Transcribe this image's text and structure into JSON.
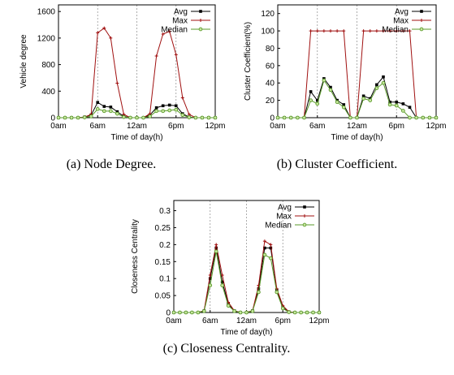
{
  "chart_data": [
    {
      "type": "line",
      "caption": "(a) Node Degree.",
      "xlabel": "Time of day(h)",
      "ylabel": "Vehicle degree",
      "x_ticks": [
        "0am",
        "6am",
        "12am",
        "6pm",
        "12pm"
      ],
      "y_ticks": [
        "0",
        "400",
        "800",
        "1200",
        "1600"
      ],
      "ylim": [
        0,
        1700
      ],
      "xlim": [
        0,
        24
      ],
      "grid": "vertical dashed",
      "legend": "top-right",
      "x": [
        0,
        1,
        2,
        3,
        4,
        5,
        6,
        7,
        8,
        9,
        10,
        11,
        12,
        13,
        14,
        15,
        16,
        17,
        18,
        19,
        20,
        21,
        22,
        23,
        24
      ],
      "series": [
        {
          "name": "Avg",
          "color": "#000000",
          "marker": "square",
          "values": [
            0,
            0,
            0,
            0,
            10,
            40,
            230,
            170,
            160,
            90,
            20,
            0,
            0,
            0,
            40,
            150,
            180,
            190,
            180,
            60,
            10,
            0,
            0,
            0,
            0
          ]
        },
        {
          "name": "Max",
          "color": "#a01010",
          "marker": "plus",
          "values": [
            0,
            0,
            0,
            0,
            10,
            50,
            1280,
            1350,
            1200,
            520,
            50,
            0,
            0,
            0,
            60,
            930,
            1260,
            1300,
            950,
            300,
            50,
            0,
            0,
            0,
            0
          ]
        },
        {
          "name": "Median",
          "color": "#5a9a2a",
          "marker": "circle",
          "values": [
            0,
            0,
            0,
            0,
            5,
            20,
            130,
            100,
            100,
            60,
            10,
            0,
            0,
            0,
            20,
            100,
            100,
            110,
            120,
            40,
            5,
            0,
            0,
            0,
            0
          ]
        }
      ]
    },
    {
      "type": "line",
      "caption": "(b) Cluster Coefficient.",
      "xlabel": "Time of day(h)",
      "ylabel": "Cluster Coefficient(%)",
      "x_ticks": [
        "0am",
        "6am",
        "12am",
        "6pm",
        "12pm"
      ],
      "y_ticks": [
        "0",
        "20",
        "40",
        "60",
        "80",
        "100",
        "120"
      ],
      "ylim": [
        0,
        130
      ],
      "xlim": [
        0,
        24
      ],
      "grid": "vertical dashed",
      "legend": "top-right",
      "x": [
        0,
        1,
        2,
        3,
        4,
        5,
        6,
        7,
        8,
        9,
        10,
        11,
        12,
        13,
        14,
        15,
        16,
        17,
        18,
        19,
        20,
        21,
        22,
        23,
        24
      ],
      "series": [
        {
          "name": "Avg",
          "color": "#000000",
          "marker": "square",
          "values": [
            0,
            0,
            0,
            0,
            0,
            30,
            20,
            45,
            35,
            20,
            15,
            0,
            0,
            25,
            22,
            38,
            47,
            18,
            18,
            16,
            12,
            0,
            0,
            0,
            0
          ]
        },
        {
          "name": "Max",
          "color": "#a01010",
          "marker": "plus",
          "values": [
            0,
            0,
            0,
            0,
            0,
            100,
            100,
            100,
            100,
            100,
            100,
            0,
            0,
            100,
            100,
            100,
            100,
            100,
            100,
            100,
            100,
            0,
            0,
            0,
            0
          ]
        },
        {
          "name": "Median",
          "color": "#5a9a2a",
          "marker": "circle",
          "values": [
            0,
            0,
            0,
            0,
            0,
            20,
            16,
            43,
            32,
            18,
            12,
            0,
            0,
            22,
            20,
            34,
            40,
            15,
            14,
            8,
            0,
            0,
            0,
            0,
            0
          ]
        }
      ]
    },
    {
      "type": "line",
      "caption": "(c) Closeness Centrality.",
      "xlabel": "Time of day(h)",
      "ylabel": "Closeness Centrality",
      "x_ticks": [
        "0am",
        "6am",
        "12am",
        "6pm",
        "12pm"
      ],
      "y_ticks": [
        "0",
        "0.05",
        "0.1",
        "0.15",
        "0.2",
        "0.25",
        "0.3"
      ],
      "ylim": [
        0,
        0.33
      ],
      "xlim": [
        0,
        24
      ],
      "grid": "vertical dashed",
      "legend": "top-right",
      "x": [
        0,
        1,
        2,
        3,
        4,
        5,
        6,
        7,
        8,
        9,
        10,
        11,
        12,
        13,
        14,
        15,
        16,
        17,
        18,
        19,
        20,
        21,
        22,
        23,
        24
      ],
      "series": [
        {
          "name": "Avg",
          "color": "#000000",
          "marker": "square",
          "values": [
            0,
            0,
            0,
            0,
            0,
            0.005,
            0.1,
            0.19,
            0.09,
            0.025,
            0.005,
            0,
            0,
            0.005,
            0.07,
            0.19,
            0.19,
            0.065,
            0.015,
            0.002,
            0,
            0,
            0,
            0,
            0
          ]
        },
        {
          "name": "Max",
          "color": "#a01010",
          "marker": "plus",
          "values": [
            0,
            0,
            0,
            0,
            0,
            0.005,
            0.11,
            0.2,
            0.11,
            0.03,
            0.005,
            0,
            0,
            0.005,
            0.08,
            0.21,
            0.2,
            0.07,
            0.02,
            0.002,
            0,
            0,
            0,
            0,
            0
          ]
        },
        {
          "name": "Median",
          "color": "#5a9a2a",
          "marker": "circle",
          "values": [
            0,
            0,
            0,
            0,
            0,
            0.004,
            0.08,
            0.18,
            0.08,
            0.02,
            0.004,
            0,
            0,
            0.004,
            0.06,
            0.17,
            0.16,
            0.06,
            0.012,
            0.001,
            0,
            0,
            0,
            0,
            0
          ]
        }
      ]
    }
  ]
}
